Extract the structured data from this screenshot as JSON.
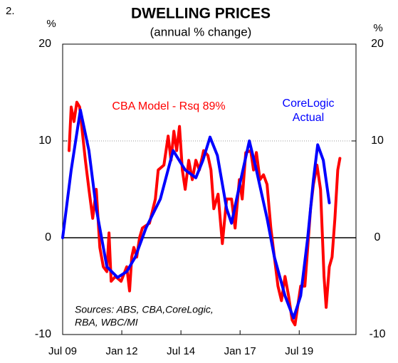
{
  "chart_data": {
    "type": "line",
    "figure_number": "2.",
    "title": "DWELLING PRICES",
    "subtitle": "(annual % change)",
    "y_unit_left": "%",
    "y_unit_right": "%",
    "source": [
      "Sources: ABS, CBA,CoreLogic,",
      "RBA, WBC/MI"
    ],
    "xlim": [
      2009.5,
      2021.9
    ],
    "xticks": [
      {
        "value": 2009.5,
        "label": "Jul 09"
      },
      {
        "value": 2012.0,
        "label": "Jan 12"
      },
      {
        "value": 2014.5,
        "label": "Jul 14"
      },
      {
        "value": 2017.0,
        "label": "Jan 17"
      },
      {
        "value": 2019.5,
        "label": "Jul 19"
      }
    ],
    "ylim": [
      -10,
      20
    ],
    "yticks": [
      -10,
      0,
      10,
      20
    ],
    "y2lim": [
      -10,
      20
    ],
    "y2ticks": [
      -10,
      0,
      10,
      20
    ],
    "grid": true,
    "series": [
      {
        "name": "CBA Model - Rsq 89%",
        "color": "#ff0000",
        "x": [
          2009.77,
          2009.86,
          2009.98,
          2010.1,
          2010.22,
          2010.46,
          2010.61,
          2010.77,
          2010.92,
          2011.07,
          2011.22,
          2011.37,
          2011.46,
          2011.55,
          2011.73,
          2011.97,
          2012.21,
          2012.33,
          2012.42,
          2012.51,
          2012.63,
          2012.75,
          2012.87,
          2013.17,
          2013.42,
          2013.54,
          2013.78,
          2013.96,
          2014.08,
          2014.2,
          2014.32,
          2014.44,
          2014.56,
          2014.68,
          2014.83,
          2014.98,
          2015.13,
          2015.28,
          2015.46,
          2015.64,
          2015.77,
          2015.89,
          2016.07,
          2016.25,
          2016.43,
          2016.64,
          2016.79,
          2016.97,
          2017.09,
          2017.24,
          2017.45,
          2017.57,
          2017.69,
          2017.84,
          2017.99,
          2018.14,
          2018.3,
          2018.45,
          2018.6,
          2018.75,
          2018.9,
          2019.05,
          2019.2,
          2019.32,
          2019.44,
          2019.56,
          2019.74,
          2019.86,
          2019.98,
          2020.1,
          2020.25,
          2020.4,
          2020.55,
          2020.64,
          2020.77,
          2020.89,
          2021.01,
          2021.13,
          2021.22
        ],
        "values": [
          9,
          13.5,
          12,
          14,
          13.5,
          8,
          5,
          2,
          5,
          -1,
          -3,
          -3.5,
          0.5,
          -4.5,
          -4,
          -4.5,
          -3,
          -5.5,
          -2,
          -1,
          -2,
          0,
          1,
          1.5,
          4,
          7,
          7.5,
          10.5,
          8,
          11,
          9,
          11.5,
          7,
          5,
          8,
          6,
          8,
          7,
          9,
          8.5,
          7,
          3,
          4.5,
          -0.6,
          4,
          4,
          1,
          6,
          4,
          8.8,
          9,
          7,
          8.8,
          6,
          6.5,
          5.5,
          1,
          -2,
          -5,
          -6.5,
          -4,
          -6,
          -8.5,
          -9,
          -7,
          -5,
          -5,
          -1,
          3,
          5.5,
          7.5,
          5,
          -4,
          -7.2,
          -3,
          -2,
          2,
          7,
          8.2
        ]
      },
      {
        "label_lines": [
          "CoreLogic",
          "Actual"
        ],
        "color": "#0000ff",
        "x": [
          2009.5,
          2009.86,
          2010.25,
          2010.61,
          2010.92,
          2011.37,
          2011.82,
          2012.21,
          2012.57,
          2013.02,
          2013.63,
          2014.17,
          2014.68,
          2015.13,
          2015.43,
          2015.73,
          2016.04,
          2016.43,
          2016.64,
          2016.94,
          2017.39,
          2017.69,
          2018.14,
          2018.45,
          2018.9,
          2019.26,
          2019.56,
          2019.86,
          2020.1,
          2020.28,
          2020.52,
          2020.77
        ],
        "values": [
          0,
          7,
          13.2,
          9,
          3,
          -3,
          -4.1,
          -3.5,
          -2,
          1,
          4,
          9,
          7,
          6.2,
          8,
          10.4,
          8.5,
          3,
          1.5,
          5,
          10,
          7,
          2,
          -2,
          -6,
          -8.3,
          -6,
          0,
          6,
          9.6,
          8,
          3.6
        ]
      }
    ]
  }
}
